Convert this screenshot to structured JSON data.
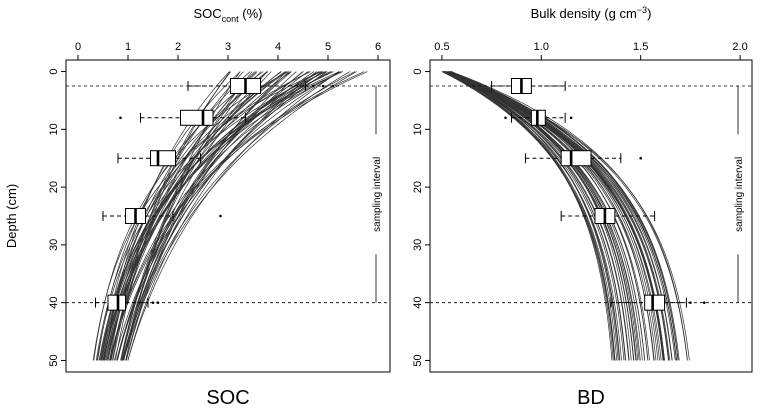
{
  "chart_data": [
    {
      "type": "box-with-curves",
      "panel_label": "SOC",
      "x_title": {
        "main": "SOC",
        "sub": "cont",
        "unit": " (%)"
      },
      "xlim": [
        0,
        6
      ],
      "x_ticks": [
        0,
        1,
        2,
        3,
        4,
        5,
        6
      ],
      "ylabel": "Depth (cm)",
      "ylim": [
        50,
        0
      ],
      "y_ticks": [
        0,
        10,
        20,
        30,
        40,
        50
      ],
      "sampling_interval": {
        "label": "sampling interval",
        "top": 2.5,
        "bottom": 40
      },
      "curves": {
        "family": "exponential decay with depth",
        "count": 60,
        "surface_range": [
          3.0,
          5.8
        ],
        "depth50_range": [
          0.3,
          1.0
        ]
      },
      "boxes": [
        {
          "depth": 2.5,
          "whisker_low": 2.2,
          "q1": 3.05,
          "median": 3.35,
          "q3": 3.65,
          "whisker_high": 4.55,
          "outliers": [
            4.7,
            4.9,
            5.1
          ]
        },
        {
          "depth": 8,
          "whisker_low": 1.25,
          "q1": 2.05,
          "median": 2.5,
          "q3": 2.7,
          "whisker_high": 3.35,
          "outliers": [
            0.85
          ]
        },
        {
          "depth": 15,
          "whisker_low": 0.8,
          "q1": 1.45,
          "median": 1.6,
          "q3": 1.95,
          "whisker_high": 2.45,
          "outliers": []
        },
        {
          "depth": 25,
          "whisker_low": 0.5,
          "q1": 0.95,
          "median": 1.15,
          "q3": 1.35,
          "whisker_high": 1.9,
          "outliers": [
            2.85
          ]
        },
        {
          "depth": 40,
          "whisker_low": 0.35,
          "q1": 0.6,
          "median": 0.8,
          "q3": 0.95,
          "whisker_high": 1.4,
          "outliers": [
            1.5,
            1.6
          ]
        }
      ]
    },
    {
      "type": "box-with-curves",
      "panel_label": "BD",
      "x_title": {
        "main": "Bulk density (g cm",
        "sup": "−3",
        "close": ")"
      },
      "xlim": [
        0.5,
        2.0
      ],
      "x_ticks": [
        0.5,
        1.0,
        1.5,
        2.0
      ],
      "x_tick_labels": [
        "0.5",
        "1.0",
        "1.5",
        "2.0"
      ],
      "ylim": [
        50,
        0
      ],
      "y_ticks": [
        0,
        10,
        20,
        30,
        40,
        50
      ],
      "sampling_interval": {
        "label": "sampling interval",
        "top": 2.5,
        "bottom": 40
      },
      "curves": {
        "family": "increasing with depth",
        "count": 60,
        "surface_range": [
          0.5,
          0.55
        ],
        "depth50_range": [
          1.35,
          1.75
        ]
      },
      "boxes": [
        {
          "depth": 2.5,
          "whisker_low": 0.75,
          "q1": 0.85,
          "median": 0.9,
          "q3": 0.95,
          "whisker_high": 1.12,
          "outliers": []
        },
        {
          "depth": 8,
          "whisker_low": 0.85,
          "q1": 0.95,
          "median": 0.98,
          "q3": 1.02,
          "whisker_high": 1.12,
          "outliers": [
            0.82,
            1.15
          ]
        },
        {
          "depth": 15,
          "whisker_low": 0.92,
          "q1": 1.1,
          "median": 1.15,
          "q3": 1.25,
          "whisker_high": 1.4,
          "outliers": [
            1.5
          ]
        },
        {
          "depth": 25,
          "whisker_low": 1.1,
          "q1": 1.27,
          "median": 1.32,
          "q3": 1.37,
          "whisker_high": 1.57,
          "outliers": []
        },
        {
          "depth": 40,
          "whisker_low": 1.35,
          "q1": 1.52,
          "median": 1.56,
          "q3": 1.62,
          "whisker_high": 1.73,
          "outliers": [
            1.75,
            1.82
          ]
        }
      ]
    }
  ]
}
